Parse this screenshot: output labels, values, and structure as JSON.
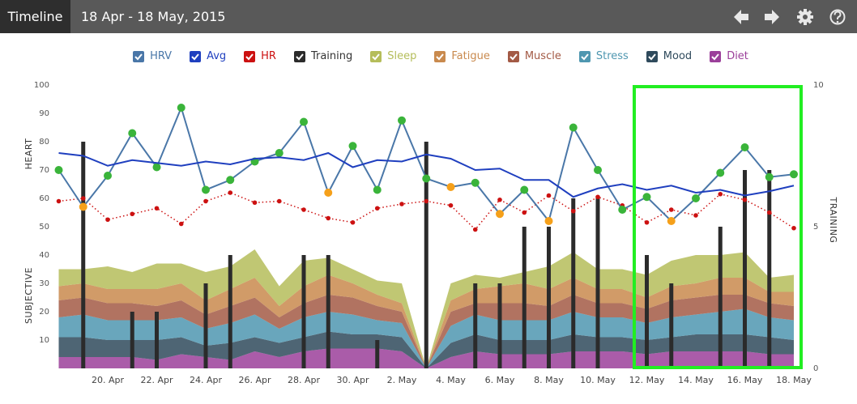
{
  "chart_data": {
    "type": "combo",
    "tab": "Timeline",
    "title": "18 Apr - 18 May, 2015",
    "y_label_top": "HEART",
    "y_label_bottom": "SUBJECTIVE",
    "y2_label": "TRAINING",
    "ylim": [
      0,
      100
    ],
    "yticks": [
      10,
      20,
      30,
      40,
      50,
      60,
      70,
      80,
      90,
      100
    ],
    "y2lim": [
      0,
      10
    ],
    "y2ticks": [
      0,
      5,
      10
    ],
    "categories": [
      null,
      null,
      "20. Apr",
      null,
      "22. Apr",
      null,
      "24. Apr",
      null,
      "26. Apr",
      null,
      "28. Apr",
      null,
      "30. Apr",
      null,
      "2. May",
      null,
      "4. May",
      null,
      "6. May",
      null,
      "8. May",
      null,
      "10. May",
      null,
      "12. May",
      null,
      "14. May",
      null,
      "16. May",
      null,
      "18. May"
    ],
    "series": [
      {
        "name": "HRV",
        "type": "line",
        "color": "#4a77a8",
        "marker_colors": [
          "#3ab43a",
          "#f5a01a",
          "#3ab43a",
          "#3ab43a",
          "#3ab43a",
          "#3ab43a",
          "#3ab43a",
          "#3ab43a",
          "#3ab43a",
          "#3ab43a",
          "#3ab43a",
          "#f5a01a",
          "#3ab43a",
          "#3ab43a",
          "#3ab43a",
          "#3ab43a",
          "#f5a01a",
          "#3ab43a",
          "#f5a01a",
          "#3ab43a",
          "#f5a01a",
          "#3ab43a",
          "#3ab43a",
          "#3ab43a",
          "#3ab43a",
          "#f5a01a",
          "#3ab43a",
          "#3ab43a",
          "#3ab43a",
          "#3ab43a",
          "#3ab43a"
        ],
        "values": [
          70,
          57,
          68,
          83,
          71,
          92,
          63,
          66.5,
          73,
          76,
          87,
          62,
          78.5,
          63,
          87.5,
          67,
          64,
          65.5,
          54.5,
          63,
          52,
          85,
          70,
          56,
          60.5,
          52,
          60,
          69,
          78,
          67.5,
          68.5
        ]
      },
      {
        "name": "Avg",
        "type": "line",
        "color": "#1f3fbf",
        "values": [
          76,
          75,
          71.5,
          73.5,
          72.5,
          71.5,
          73,
          72,
          74,
          74.5,
          73.5,
          76,
          71,
          73.5,
          73,
          75.5,
          74,
          70,
          70.5,
          66.5,
          66.5,
          60.5,
          63.5,
          65,
          63,
          64.5,
          62,
          63,
          61,
          62.5,
          64.5
        ]
      },
      {
        "name": "HR",
        "type": "dotted",
        "color": "#cc1111",
        "values": [
          59,
          60,
          52.5,
          54.5,
          56.5,
          51,
          59,
          62,
          58.5,
          59,
          56,
          53,
          51.5,
          56.5,
          58,
          59,
          57.5,
          49,
          59.5,
          55,
          61,
          55.5,
          60.5,
          57.5,
          51.5,
          56,
          54,
          61.5,
          59.5,
          55,
          49.5
        ]
      },
      {
        "name": "Training",
        "type": "bar",
        "axis": "y2",
        "color": "#2b2b2b",
        "values": [
          0,
          8,
          0,
          2,
          2,
          0,
          3,
          4,
          0,
          0,
          4,
          4,
          0,
          1,
          0,
          8,
          0,
          3,
          3,
          5,
          5,
          6,
          6,
          0,
          4,
          3,
          0,
          5,
          7,
          7,
          0
        ]
      },
      {
        "name": "Sleep",
        "type": "area",
        "color": "#b5bd5a",
        "values": [
          6,
          5,
          8,
          6,
          9,
          7,
          10,
          8,
          10,
          7,
          9,
          6,
          5,
          5,
          7,
          0,
          6,
          5,
          3,
          4,
          8,
          9,
          7,
          7,
          8,
          9,
          10,
          8,
          9,
          5,
          6
        ]
      },
      {
        "name": "Fatigue",
        "type": "area",
        "color": "#c98a4e",
        "values": [
          5,
          5,
          5,
          5,
          6,
          6,
          5,
          6,
          7,
          4,
          6,
          7,
          5,
          4,
          3,
          0,
          4,
          5,
          6,
          7,
          6,
          6,
          5,
          5,
          4,
          5,
          5,
          6,
          6,
          4,
          5
        ]
      },
      {
        "name": "Muscle",
        "type": "area",
        "color": "#a35a45",
        "values": [
          6,
          6,
          6,
          6,
          5,
          6,
          5,
          6,
          6,
          4,
          5,
          6,
          6,
          5,
          4,
          0,
          5,
          4,
          6,
          6,
          5,
          6,
          5,
          5,
          5,
          6,
          6,
          6,
          5,
          5,
          5
        ]
      },
      {
        "name": "Stress",
        "type": "area",
        "color": "#4f97b0",
        "values": [
          7,
          8,
          7,
          7,
          7,
          7,
          6,
          7,
          8,
          5,
          7,
          7,
          7,
          5,
          5,
          0,
          6,
          7,
          7,
          7,
          7,
          8,
          7,
          7,
          6,
          7,
          7,
          8,
          9,
          7,
          7
        ]
      },
      {
        "name": "Mood",
        "type": "area",
        "color": "#2f4a5c",
        "values": [
          7,
          7,
          6,
          6,
          7,
          6,
          4,
          6,
          5,
          5,
          5,
          6,
          5,
          5,
          5,
          0,
          5,
          6,
          5,
          5,
          5,
          6,
          5,
          5,
          5,
          5,
          6,
          6,
          6,
          6,
          5
        ]
      },
      {
        "name": "Diet",
        "type": "area",
        "color": "#9b3f9a",
        "values": [
          4,
          4,
          4,
          4,
          3,
          5,
          4,
          3,
          6,
          4,
          6,
          7,
          7,
          7,
          6,
          0,
          4,
          6,
          5,
          5,
          5,
          6,
          6,
          6,
          5,
          6,
          6,
          6,
          6,
          5,
          5
        ]
      }
    ]
  }
}
